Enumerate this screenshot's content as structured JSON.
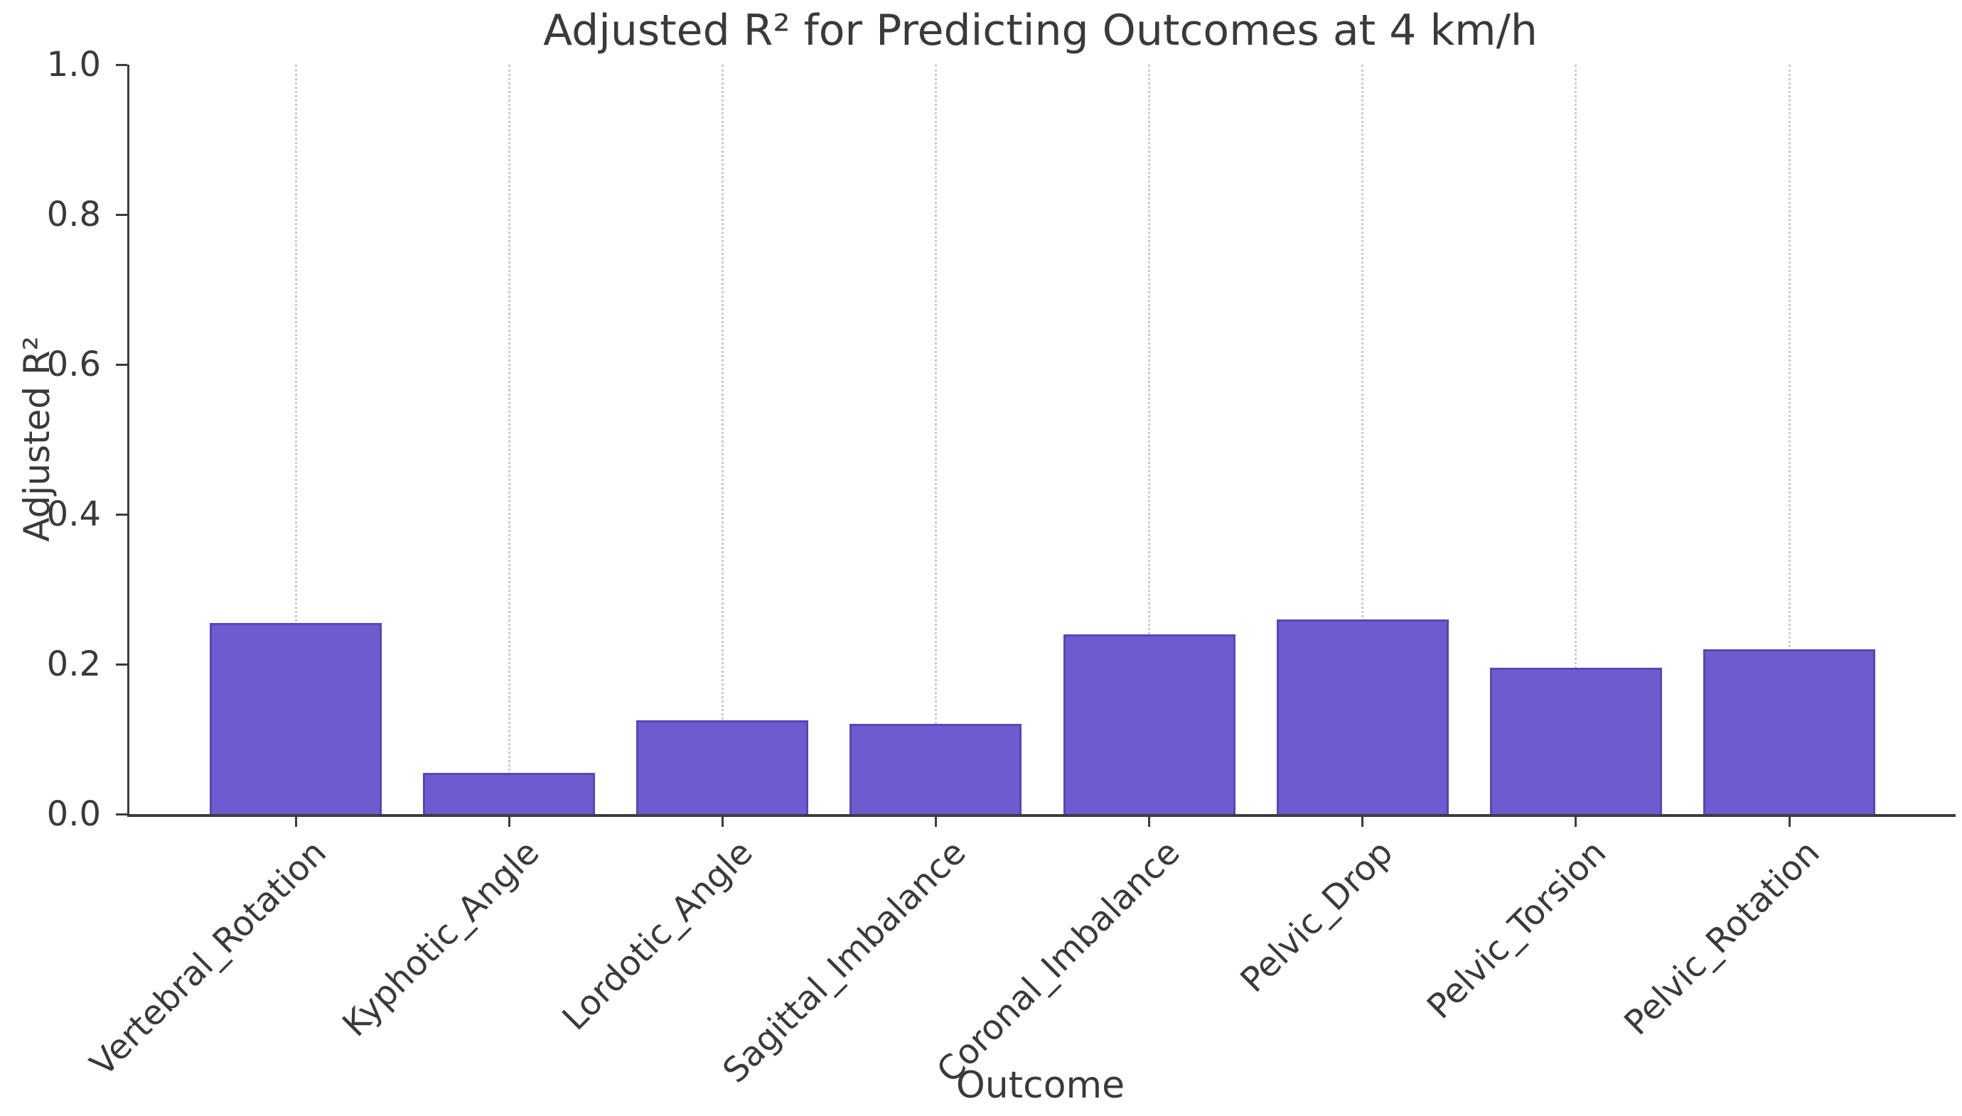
{
  "chart_data": {
    "type": "bar",
    "title": "Adjusted R² for Predicting Outcomes at 4 km/h",
    "xlabel": "Outcome",
    "ylabel": "Adjusted R²",
    "categories": [
      "Vertebral_Rotation",
      "Kyphotic_Angle",
      "Lordotic_Angle",
      "Sagittal_Imbalance",
      "Coronal_Imbalance",
      "Pelvic_Drop",
      "Pelvic_Torsion",
      "Pelvic_Rotation"
    ],
    "values": [
      0.255,
      0.055,
      0.125,
      0.12,
      0.24,
      0.26,
      0.195,
      0.22
    ],
    "ylim": [
      0.0,
      1.0
    ],
    "yticks": [
      "0.0",
      "0.2",
      "0.4",
      "0.6",
      "0.8",
      "1.0"
    ],
    "grid": "vertical dotted gridline at each category, full height",
    "legend": "none",
    "colors": {
      "bar_fill": "#6c5ccf",
      "bar_edge": "#5547b8",
      "grid_line": "#cbcbcb",
      "axis_line": "#3c3c3c",
      "text": "#3a3a3a",
      "background": "#ffffff"
    }
  }
}
